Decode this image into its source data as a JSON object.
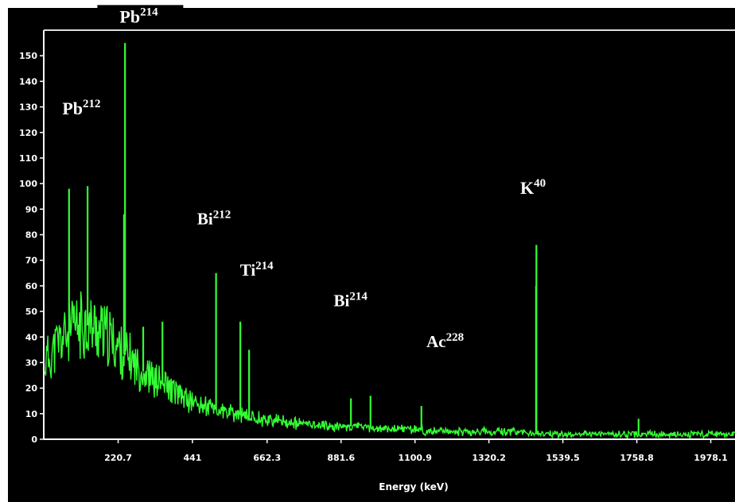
{
  "chart_data": {
    "type": "line",
    "title": "",
    "xlabel": "Energy (keV)",
    "ylabel": "",
    "xlim": [
      0,
      2050
    ],
    "ylim": [
      0,
      160
    ],
    "y_ticks": [
      0,
      10,
      20,
      30,
      40,
      50,
      60,
      70,
      80,
      90,
      100,
      110,
      120,
      130,
      140,
      150
    ],
    "x_ticks": [
      220.7,
      441,
      662.3,
      881.6,
      1100.9,
      1320.2,
      1539.5,
      1758.8,
      1978.1
    ],
    "x_tick_labels": [
      "220.7",
      "441",
      "662.3",
      "881.6",
      "1100.9",
      "1320.2",
      "1539.5",
      "1758.8",
      "1978.1"
    ],
    "grid": false,
    "colors": {
      "spectrum": "#33ff33",
      "background": "#000000",
      "text": "#ffffff"
    },
    "series": [
      {
        "x": [
          0,
          20,
          40,
          60,
          80,
          100,
          120,
          140,
          160,
          180,
          200,
          220,
          240,
          260,
          280,
          300,
          330,
          360,
          390,
          420,
          450,
          480,
          520,
          560,
          600,
          650,
          700,
          750,
          800,
          850,
          900,
          950,
          1000,
          1050,
          1100,
          1150,
          1200,
          1250,
          1300,
          1350,
          1400,
          1450,
          1500,
          1550,
          1600,
          1650,
          1700,
          1750,
          1800,
          1850,
          1900,
          1950,
          2000,
          2050
        ],
        "y": [
          30,
          33,
          37,
          40,
          42,
          44,
          45,
          44,
          43,
          41,
          39,
          36,
          33,
          31,
          28,
          26,
          23,
          21,
          18,
          16,
          14,
          13,
          11,
          10,
          9,
          8,
          7,
          6,
          6,
          5,
          5,
          5,
          4,
          4,
          4,
          3,
          3,
          3,
          3,
          3,
          3,
          2,
          2,
          2,
          2,
          2,
          2,
          2,
          2,
          2,
          2,
          2,
          2,
          2
        ]
      }
    ],
    "peaks": [
      {
        "x": 75,
        "y": 98
      },
      {
        "x": 130,
        "y": 99
      },
      {
        "x": 238,
        "y": 88
      },
      {
        "x": 241,
        "y": 155
      },
      {
        "x": 295,
        "y": 44
      },
      {
        "x": 352,
        "y": 46
      },
      {
        "x": 511,
        "y": 65
      },
      {
        "x": 583,
        "y": 46
      },
      {
        "x": 609,
        "y": 35
      },
      {
        "x": 911,
        "y": 16
      },
      {
        "x": 969,
        "y": 17
      },
      {
        "x": 1120,
        "y": 13
      },
      {
        "x": 1460,
        "y": 60
      },
      {
        "x": 1461,
        "y": 76
      },
      {
        "x": 1764,
        "y": 8
      }
    ],
    "annotations": [
      {
        "base": "Pb",
        "sup": "212",
        "x": 55,
        "y": 127,
        "size": 22
      },
      {
        "base": "Pb",
        "sup": "214",
        "x": 225,
        "y": 163,
        "size": 22
      },
      {
        "base": "Bi",
        "sup": "212",
        "x": 455,
        "y": 84,
        "size": 21
      },
      {
        "base": "Ti",
        "sup": "214",
        "x": 582,
        "y": 64,
        "size": 21
      },
      {
        "base": "Bi",
        "sup": "214",
        "x": 860,
        "y": 52,
        "size": 21
      },
      {
        "base": "Ac",
        "sup": "228",
        "x": 1135,
        "y": 36,
        "size": 21
      },
      {
        "base": "K",
        "sup": "40",
        "x": 1413,
        "y": 96,
        "size": 22
      }
    ]
  }
}
